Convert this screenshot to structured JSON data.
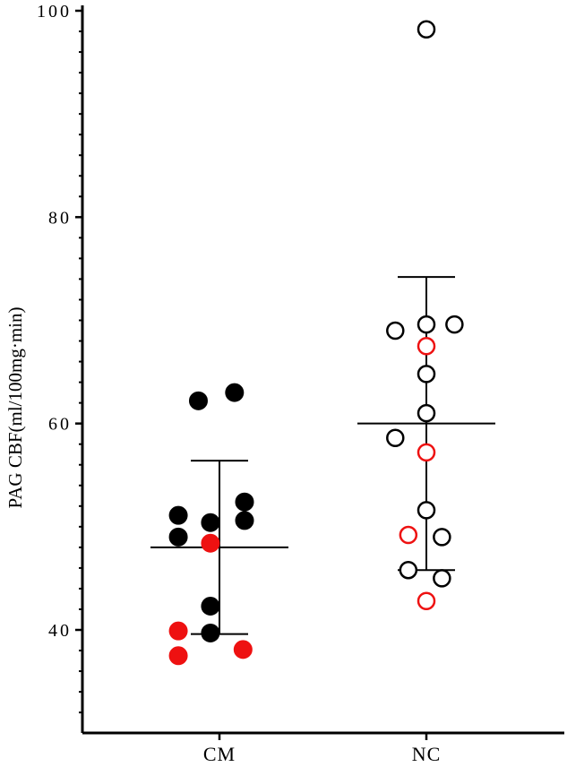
{
  "chart_data": {
    "type": "scatter",
    "ylabel": "PAG CBF(ml/100mg·min)",
    "xlabel": "",
    "ylim": [
      30,
      100
    ],
    "yticks": [
      40,
      60,
      80,
      100
    ],
    "categories": [
      "CM",
      "NC"
    ],
    "colors": {
      "axis": "#000000",
      "black": "#000000",
      "red": "#ee1111"
    },
    "groups": [
      {
        "name": "CM",
        "marker": "filled",
        "mean": 48.0,
        "sd_upper": 56.4,
        "sd_lower": 39.6,
        "points": [
          {
            "x": 0.58,
            "y": 62.2,
            "color": "black"
          },
          {
            "x": 1.3,
            "y": 63.0,
            "color": "black"
          },
          {
            "x": 0.18,
            "y": 51.1,
            "color": "black"
          },
          {
            "x": 0.18,
            "y": 49.0,
            "color": "black"
          },
          {
            "x": 0.82,
            "y": 50.4,
            "color": "black"
          },
          {
            "x": 1.5,
            "y": 52.4,
            "color": "black"
          },
          {
            "x": 1.5,
            "y": 50.6,
            "color": "black"
          },
          {
            "x": 0.82,
            "y": 48.4,
            "color": "red"
          },
          {
            "x": 0.82,
            "y": 42.3,
            "color": "black"
          },
          {
            "x": 0.82,
            "y": 39.7,
            "color": "black"
          },
          {
            "x": 0.18,
            "y": 39.9,
            "color": "red"
          },
          {
            "x": 0.18,
            "y": 37.5,
            "color": "red"
          },
          {
            "x": 1.47,
            "y": 38.1,
            "color": "red"
          }
        ]
      },
      {
        "name": "NC",
        "marker": "open",
        "mean": 60.0,
        "sd_upper": 74.2,
        "sd_lower": 45.8,
        "points": [
          {
            "x": 1.0,
            "y": 98.2,
            "color": "black"
          },
          {
            "x": 0.38,
            "y": 69.0,
            "color": "black"
          },
          {
            "x": 1.0,
            "y": 69.6,
            "color": "black"
          },
          {
            "x": 1.56,
            "y": 69.6,
            "color": "black"
          },
          {
            "x": 1.0,
            "y": 67.5,
            "color": "red"
          },
          {
            "x": 1.0,
            "y": 64.8,
            "color": "black"
          },
          {
            "x": 1.0,
            "y": 61.0,
            "color": "black"
          },
          {
            "x": 0.38,
            "y": 58.6,
            "color": "black"
          },
          {
            "x": 1.0,
            "y": 57.2,
            "color": "red"
          },
          {
            "x": 1.0,
            "y": 51.6,
            "color": "black"
          },
          {
            "x": 0.64,
            "y": 49.2,
            "color": "red"
          },
          {
            "x": 1.31,
            "y": 49.0,
            "color": "black"
          },
          {
            "x": 0.64,
            "y": 45.8,
            "color": "black"
          },
          {
            "x": 1.31,
            "y": 45.0,
            "color": "black"
          },
          {
            "x": 1.0,
            "y": 42.8,
            "color": "red"
          }
        ]
      }
    ]
  }
}
